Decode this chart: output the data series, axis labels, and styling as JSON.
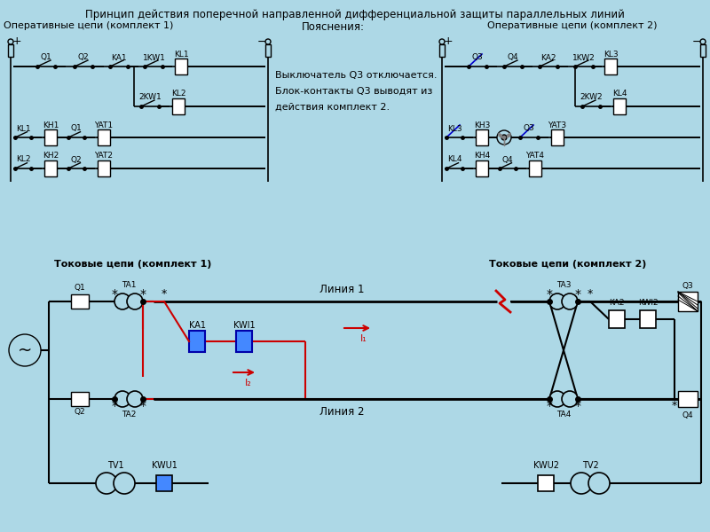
{
  "title": "Принцип действия поперечной направленной дифференциальной защиты параллельных линий",
  "bg_color": "#add8e6",
  "line_color": "#000000",
  "red_color": "#cc0000",
  "blue_color": "#0000cc",
  "text_color": "#000000",
  "label1": "Оперативные цепи (комплект 1)",
  "label2": "Пояснения:",
  "label3": "Оперативные цепи (комплект 2)",
  "label4": "Токовые цепи (комплект 1)",
  "label5": "Токовые цепи (комплект 2)",
  "explanation": [
    "Выключатель Q3 отключается.",
    "Блок-контакты Q3 выводят из",
    "действия комплект 2."
  ],
  "line1_label": "Линия 1",
  "line2_label": "Линия 2",
  "I1_label": "I₁",
  "I2_label": "I₂"
}
